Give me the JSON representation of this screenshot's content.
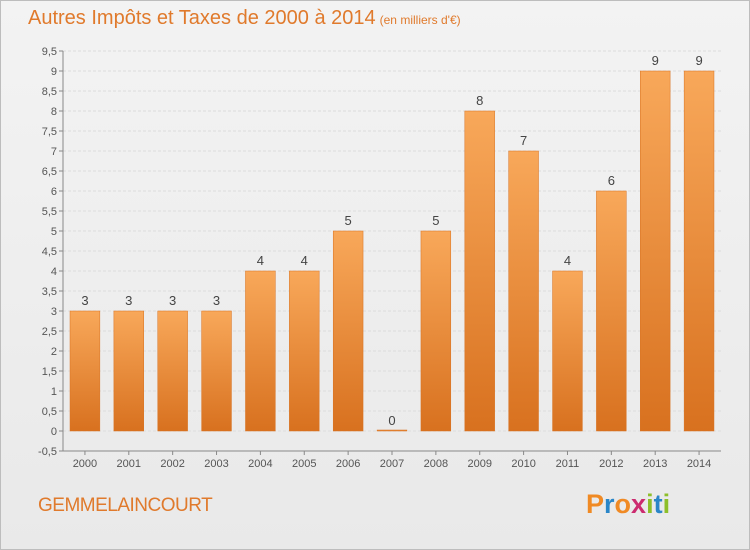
{
  "header": {
    "title": "Autres Impôts et Taxes de 2000 à 2014",
    "unit": "(en milliers d'€)"
  },
  "footer": {
    "commune": "GEMMELAINCOURT",
    "logo": "Proxiti"
  },
  "colors": {
    "bar_light": "#f8a85a",
    "bar_dark": "#d8711f",
    "title": "#e07a2c",
    "axis_text": "#555555",
    "logo_letters": [
      "#f08a24",
      "#2a86c8",
      "#f08a24",
      "#cc2b6f",
      "#8dbf2a",
      "#2a86c8",
      "#8dbf2a"
    ]
  },
  "chart_data": {
    "type": "bar",
    "categories": [
      "2000",
      "2001",
      "2002",
      "2003",
      "2004",
      "2005",
      "2006",
      "2007",
      "2008",
      "2009",
      "2010",
      "2011",
      "2012",
      "2013",
      "2014"
    ],
    "values": [
      3,
      3,
      3,
      3,
      4,
      4,
      5,
      0,
      5,
      8,
      7,
      4,
      6,
      9,
      9
    ],
    "data_labels": [
      "3",
      "3",
      "3",
      "3",
      "4",
      "4",
      "5",
      "0",
      "5",
      "8",
      "7",
      "4",
      "6",
      "9",
      "9"
    ],
    "ylim": [
      -0.5,
      9.5
    ],
    "yticks": [
      "-0,5",
      "0",
      "0,5",
      "1",
      "1,5",
      "2",
      "2,5",
      "3",
      "3,5",
      "4",
      "4,5",
      "5",
      "5,5",
      "6",
      "6,5",
      "7",
      "7,5",
      "8",
      "8,5",
      "9",
      "9,5"
    ],
    "grid": true
  }
}
